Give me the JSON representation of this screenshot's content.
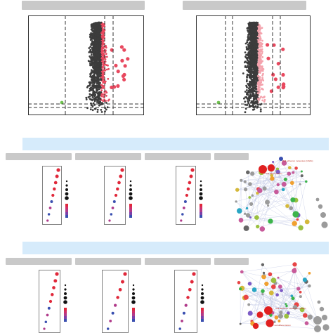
{
  "figure": {
    "panel_headers": [
      "",
      "",
      "",
      "",
      "",
      "",
      "",
      "",
      "",
      "",
      "",
      "",
      "",
      "",
      "",
      ""
    ],
    "section_bands": [
      "",
      ""
    ],
    "network_labels_top": [
      "Cell adhesion molecules (CAMs)",
      "T cell differentiation"
    ],
    "network_labels_bottom": [
      "Cell adhesion molecules (CAMs)",
      "T cell differentiation"
    ]
  },
  "colors": {
    "up": "#e8495f",
    "up_light": "#f4a3ad",
    "down": "#6fc24f",
    "nonsig": "#3c3c3c",
    "band": "#d6ebfb",
    "header": "#c9c9c9"
  }
}
